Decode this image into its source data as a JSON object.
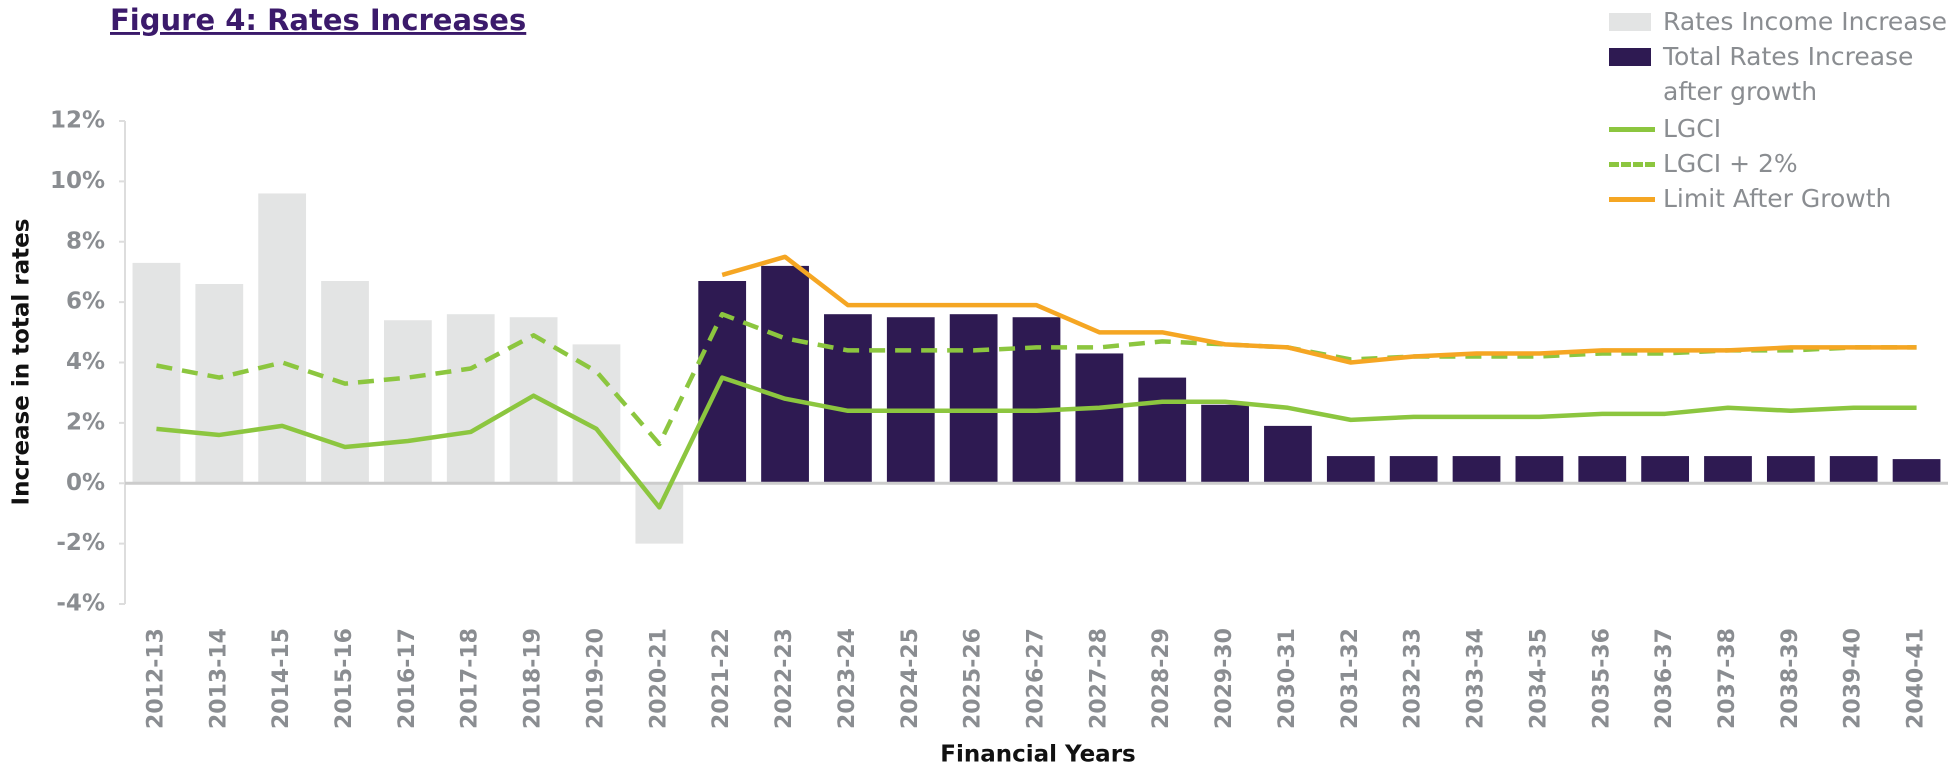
{
  "chart_data": {
    "type": "combo",
    "title": "Figure 4: Rates Increases",
    "x_label": "Financial Years",
    "y_label": "Increase in total rates",
    "categories": [
      "2012-13",
      "2013-14",
      "2014-15",
      "2015-16",
      "2016-17",
      "2017-18",
      "2018-19",
      "2019-20",
      "2020-21",
      "2021-22",
      "2022-23",
      "2023-24",
      "2024-25",
      "2025-26",
      "2026-27",
      "2027-28",
      "2028-29",
      "2029-30",
      "2030-31",
      "2031-32",
      "2032-33",
      "2033-34",
      "2034-35",
      "2035-36",
      "2036-37",
      "2037-38",
      "2038-39",
      "2039-40",
      "2040-41"
    ],
    "ylim": [
      -4,
      12
    ],
    "yticks": [
      {
        "value": -4,
        "label": "-4%"
      },
      {
        "value": -2,
        "label": "-2%"
      },
      {
        "value": 0,
        "label": "0%"
      },
      {
        "value": 2,
        "label": "2%"
      },
      {
        "value": 4,
        "label": "4%"
      },
      {
        "value": 6,
        "label": "6%"
      },
      {
        "value": 8,
        "label": "8%"
      },
      {
        "value": 10,
        "label": "10%"
      },
      {
        "value": 12,
        "label": "12%"
      }
    ],
    "legend_position": "upper right",
    "series": [
      {
        "name": "Rates Income Increase",
        "type": "bar",
        "color": "#e3e4e4",
        "values": [
          7.3,
          6.6,
          9.6,
          6.7,
          5.4,
          5.6,
          5.5,
          4.6,
          -2.0,
          null,
          null,
          null,
          null,
          null,
          null,
          null,
          null,
          null,
          null,
          null,
          null,
          null,
          null,
          null,
          null,
          null,
          null,
          null,
          null
        ]
      },
      {
        "name": "Total Rates Increase after growth",
        "type": "bar",
        "color": "#2e1a52",
        "values": [
          null,
          null,
          null,
          null,
          null,
          null,
          null,
          null,
          null,
          6.7,
          7.2,
          5.6,
          5.5,
          5.6,
          5.5,
          4.3,
          3.5,
          2.6,
          1.9,
          0.9,
          0.9,
          0.9,
          0.9,
          0.9,
          0.9,
          0.9,
          0.9,
          0.9,
          0.8
        ]
      },
      {
        "name": "LGCI",
        "type": "line",
        "color": "#8cc63f",
        "dashed": false,
        "values": [
          1.8,
          1.6,
          1.9,
          1.2,
          1.4,
          1.7,
          2.9,
          1.8,
          -0.8,
          3.5,
          2.8,
          2.4,
          2.4,
          2.4,
          2.4,
          2.5,
          2.7,
          2.7,
          2.5,
          2.1,
          2.2,
          2.2,
          2.2,
          2.3,
          2.3,
          2.5,
          2.4,
          2.5,
          2.5
        ]
      },
      {
        "name": "LGCI + 2%",
        "type": "line",
        "color": "#8cc63f",
        "dashed": true,
        "values": [
          3.9,
          3.5,
          4.0,
          3.3,
          3.5,
          3.8,
          4.9,
          3.7,
          1.3,
          5.6,
          4.8,
          4.4,
          4.4,
          4.4,
          4.5,
          4.5,
          4.7,
          4.6,
          4.5,
          4.1,
          4.2,
          4.2,
          4.2,
          4.3,
          4.3,
          4.4,
          4.4,
          4.5,
          4.5
        ]
      },
      {
        "name": "Limit After Growth",
        "type": "line",
        "color": "#f5a623",
        "dashed": false,
        "values": [
          null,
          null,
          null,
          null,
          null,
          null,
          null,
          null,
          null,
          6.9,
          7.5,
          5.9,
          5.9,
          5.9,
          5.9,
          5.0,
          5.0,
          4.6,
          4.5,
          4.0,
          4.2,
          4.3,
          4.3,
          4.4,
          4.4,
          4.4,
          4.5,
          4.5,
          4.5
        ]
      }
    ]
  }
}
